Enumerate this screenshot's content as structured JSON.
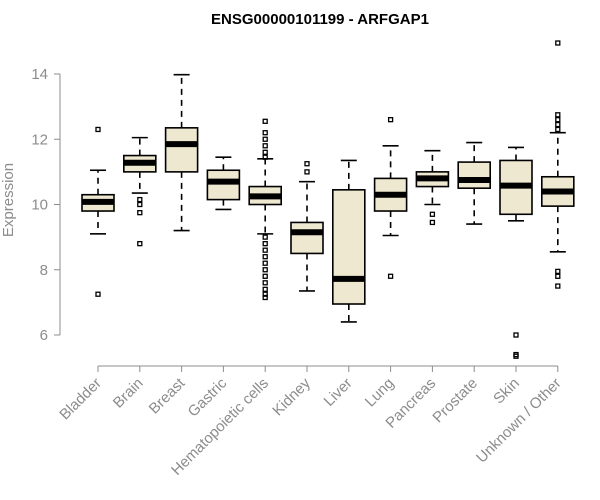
{
  "chart_data": {
    "type": "box",
    "title": "ENSG00000101199 - ARFGAP1",
    "xlabel": "",
    "ylabel": "Expression",
    "ylim": [
      5,
      15
    ],
    "yticks": [
      6,
      8,
      10,
      12,
      14
    ],
    "grid": false,
    "box_color": "#efe8d0",
    "line_color": "#000000",
    "axis_color": "#8c8c8c",
    "categories": [
      "Bladder",
      "Brain",
      "Breast",
      "Gastric",
      "Hematopoietic cells",
      "Kidney",
      "Liver",
      "Lung",
      "Pancreas",
      "Prostate",
      "Skin",
      "Unknown / Other"
    ],
    "boxes": [
      {
        "category": "Bladder",
        "min": 9.1,
        "q1": 9.8,
        "median": 10.08,
        "q3": 10.3,
        "max": 11.05,
        "outliers": [
          12.3,
          7.25
        ]
      },
      {
        "category": "Brain",
        "min": 10.35,
        "q1": 11.0,
        "median": 11.28,
        "q3": 11.5,
        "max": 12.05,
        "outliers": [
          10.15,
          10.0,
          9.75,
          8.8
        ]
      },
      {
        "category": "Breast",
        "min": 9.2,
        "q1": 11.0,
        "median": 11.85,
        "q3": 12.35,
        "max": 13.98,
        "outliers": []
      },
      {
        "category": "Gastric",
        "min": 9.85,
        "q1": 10.15,
        "median": 10.7,
        "q3": 11.05,
        "max": 11.45,
        "outliers": []
      },
      {
        "category": "Hematopoietic cells",
        "min": 9.1,
        "q1": 10.0,
        "median": 10.25,
        "q3": 10.55,
        "max": 11.4,
        "outliers": [
          12.55,
          12.2,
          12.0,
          11.8,
          11.6,
          11.45,
          9.0,
          8.8,
          8.6,
          8.4,
          8.2,
          8.0,
          7.8,
          7.6,
          7.4,
          7.25,
          7.15
        ]
      },
      {
        "category": "Kidney",
        "min": 7.35,
        "q1": 8.5,
        "median": 9.15,
        "q3": 9.45,
        "max": 10.7,
        "outliers": [
          11.25,
          11.0
        ]
      },
      {
        "category": "Liver",
        "min": 6.4,
        "q1": 6.95,
        "median": 7.72,
        "q3": 10.45,
        "max": 11.35,
        "outliers": []
      },
      {
        "category": "Lung",
        "min": 9.05,
        "q1": 9.8,
        "median": 10.3,
        "q3": 10.8,
        "max": 11.8,
        "outliers": [
          12.6,
          7.8
        ]
      },
      {
        "category": "Pancreas",
        "min": 10.0,
        "q1": 10.55,
        "median": 10.8,
        "q3": 11.0,
        "max": 11.65,
        "outliers": [
          9.7,
          9.45
        ]
      },
      {
        "category": "Prostate",
        "min": 9.4,
        "q1": 10.5,
        "median": 10.75,
        "q3": 11.3,
        "max": 11.9,
        "outliers": []
      },
      {
        "category": "Skin",
        "min": 9.5,
        "q1": 9.7,
        "median": 10.58,
        "q3": 11.35,
        "max": 11.75,
        "outliers": [
          6.0,
          5.4,
          5.35
        ]
      },
      {
        "category": "Unknown / Other",
        "min": 8.55,
        "q1": 9.95,
        "median": 10.4,
        "q3": 10.85,
        "max": 12.2,
        "outliers": [
          14.95,
          12.75,
          12.6,
          12.45,
          12.3,
          7.95,
          7.8,
          7.5
        ]
      }
    ]
  }
}
